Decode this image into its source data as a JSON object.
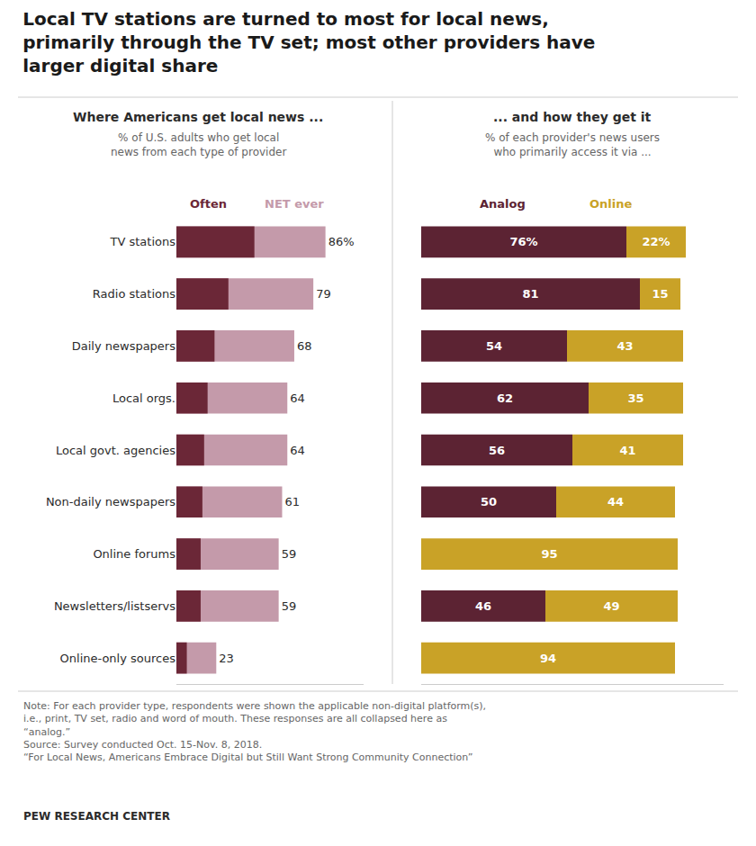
{
  "title": "Local TV stations are turned to most for local news,\nprimarily through the TV set; most other providers have\nlarger digital share",
  "annotations": [
    "Note: For each provider type, respondents were shown the applicable non-digital platform(s),\ni.e., print, TV set, radio and word of mouth. These responses are all collapsed here as\n“analog.”\nSource: Survey conducted Oct. 15-Nov. 8, 2018.\n“For Local News, Americans Embrace Digital but Still Want Strong Community Connection”",
    "PEW RESEARCH CENTER"
  ],
  "chart_data": [
    {
      "type": "bar",
      "orientation": "horizontal",
      "title": "Where Americans get local news ...",
      "subtitle": "% of U.S. adults who get local\nnews from each type of provider",
      "categories": [
        "TV stations",
        "Radio stations",
        "Daily newspapers",
        "Local orgs.",
        "Local govt. agencies",
        "Non-daily newspapers",
        "Online forums",
        "Newsletters/listservs",
        "Online-only sources"
      ],
      "series": [
        {
          "name": "NET ever",
          "color": "#c49aaa",
          "values": [
            86,
            79,
            68,
            64,
            64,
            61,
            59,
            59,
            23
          ],
          "data_labels": true,
          "value_labels": [
            "86%",
            "79",
            "68",
            "64",
            "64",
            "61",
            "59",
            "59",
            "23"
          ]
        },
        {
          "name": "Often",
          "color": "#6b2737",
          "values": [
            45,
            30,
            22,
            18,
            16,
            15,
            14,
            14,
            6
          ]
        }
      ],
      "xlim": [
        0,
        108
      ],
      "stacked": false,
      "grid": false,
      "tick_labels": "y"
    },
    {
      "type": "bar",
      "orientation": "horizontal",
      "title": "... and how they get it",
      "subtitle": "% of each provider's news users\nwho primarily access it via ...",
      "categories": [
        "TV stations",
        "Radio stations",
        "Daily newspapers",
        "Local orgs.",
        "Local govt. agencies",
        "Non-daily newspapers",
        "Online forums",
        "Newsletters/listservs",
        "Online-only sources"
      ],
      "series": [
        {
          "name": "Analog",
          "color": "#5c2333",
          "values": [
            76,
            81,
            54,
            62,
            56,
            50,
            0,
            46,
            0
          ],
          "data_labels": true,
          "value_labels": [
            "76%",
            "81",
            "54",
            "62",
            "56",
            "50",
            null,
            "46",
            null
          ]
        },
        {
          "name": "Online",
          "color": "#c9a227",
          "values": [
            22,
            15,
            43,
            35,
            41,
            44,
            95,
            49,
            94
          ],
          "data_labels": true,
          "value_labels": [
            "22%",
            "15",
            "43",
            "35",
            "41",
            "44",
            "95",
            "49",
            "94"
          ]
        }
      ],
      "xlim": [
        0,
        112
      ],
      "stacked": true,
      "grid": false,
      "tick_labels": false
    }
  ]
}
